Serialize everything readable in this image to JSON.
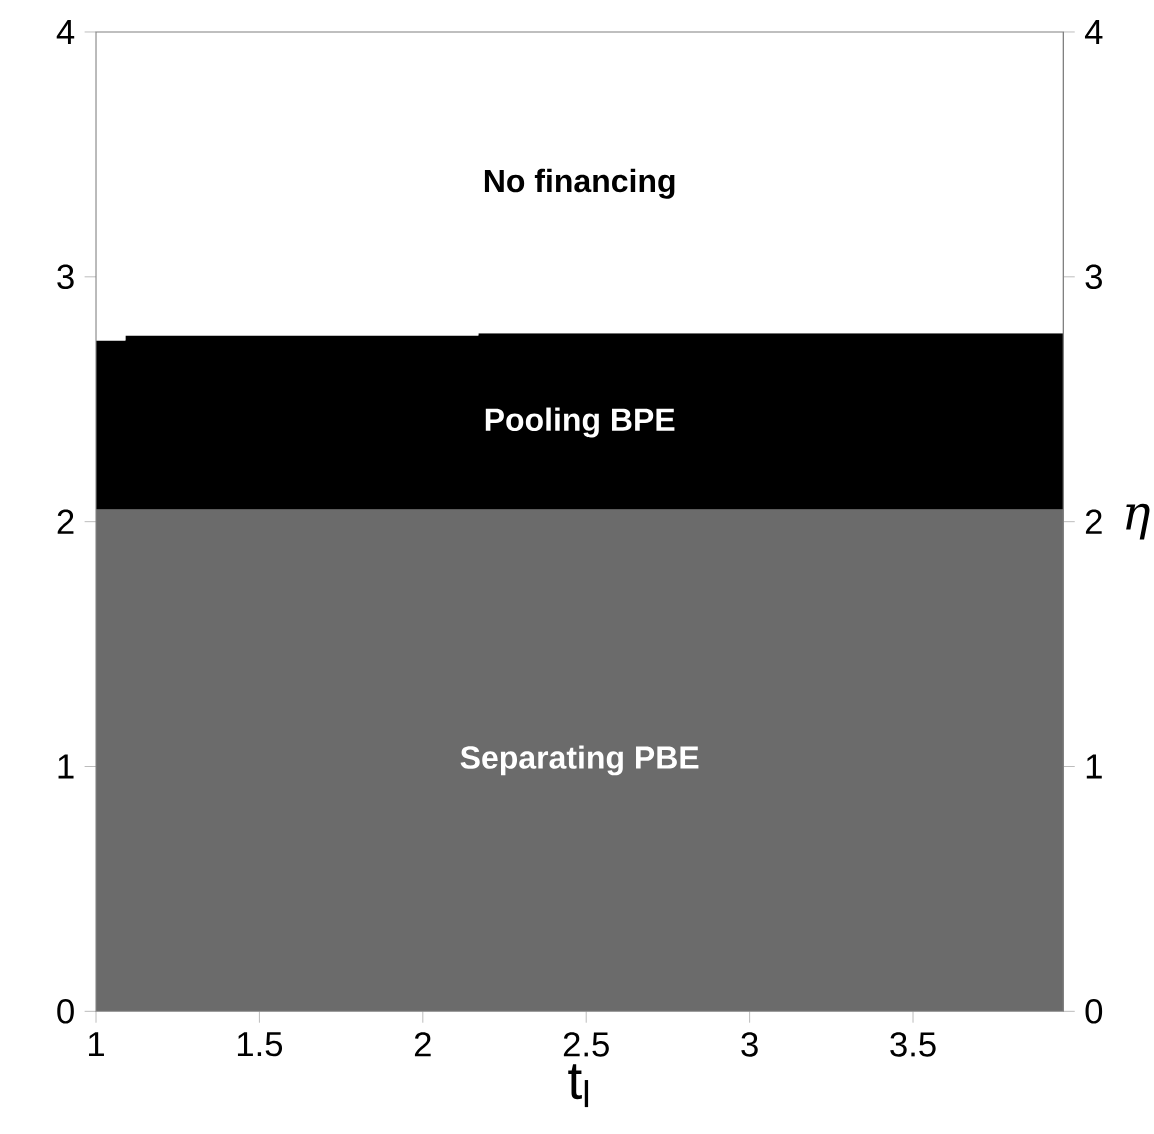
{
  "chart_data": {
    "type": "area",
    "stacked": true,
    "x": [
      1,
      1.09,
      1.09,
      2.17,
      2.17,
      3.96
    ],
    "series": [
      {
        "name": "Separating PBE",
        "color": "#6b6b6b",
        "values": [
          2.05,
          2.05,
          2.05,
          2.05,
          2.05,
          2.05
        ]
      },
      {
        "name": "Pooling BPE",
        "color": "#000000",
        "values": [
          0.69,
          0.69,
          0.71,
          0.71,
          0.72,
          0.72
        ]
      },
      {
        "name": "No financing",
        "color": "#ffffff",
        "values": [
          1.26,
          1.26,
          1.24,
          1.24,
          1.23,
          1.23
        ]
      }
    ],
    "xlabel": "t$_{l}$",
    "y2label": "η",
    "xlim": [
      1,
      3.96
    ],
    "xticks": [
      1,
      1.5,
      2,
      2.5,
      3,
      3.5
    ],
    "ylim": [
      0,
      4
    ],
    "yticks": [
      0,
      1,
      2,
      3,
      4
    ],
    "y2lim": [
      0,
      4
    ],
    "y2ticks": [
      0,
      1,
      2,
      3,
      4
    ],
    "grid": false
  }
}
